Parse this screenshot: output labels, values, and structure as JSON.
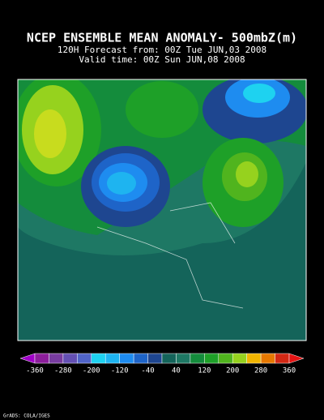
{
  "header": {
    "title": "NCEP ENSEMBLE MEAN ANOMALY- 500mbZ(m)",
    "forecast": "120H Forecast from: 00Z Tue JUN,03 2008",
    "valid": "Valid time: 00Z Sun JUN,08 2008"
  },
  "colorbar": {
    "labels": [
      -360,
      -280,
      -200,
      -120,
      -40,
      40,
      120,
      200,
      280,
      360
    ],
    "colors": [
      "#a000c8",
      "#8c1e9b",
      "#783ca0",
      "#6450b4",
      "#5064c8",
      "#1ed2f0",
      "#1eb4f0",
      "#1e8cf0",
      "#1e64c8",
      "#1e4690",
      "#14645a",
      "#1e7864",
      "#148c3c",
      "#1ea028",
      "#50b41e",
      "#96d21e",
      "#f0b400",
      "#e67800",
      "#d22814",
      "#e61414"
    ]
  },
  "footer": {
    "credit": "GrADS: COLA/IGES"
  }
}
